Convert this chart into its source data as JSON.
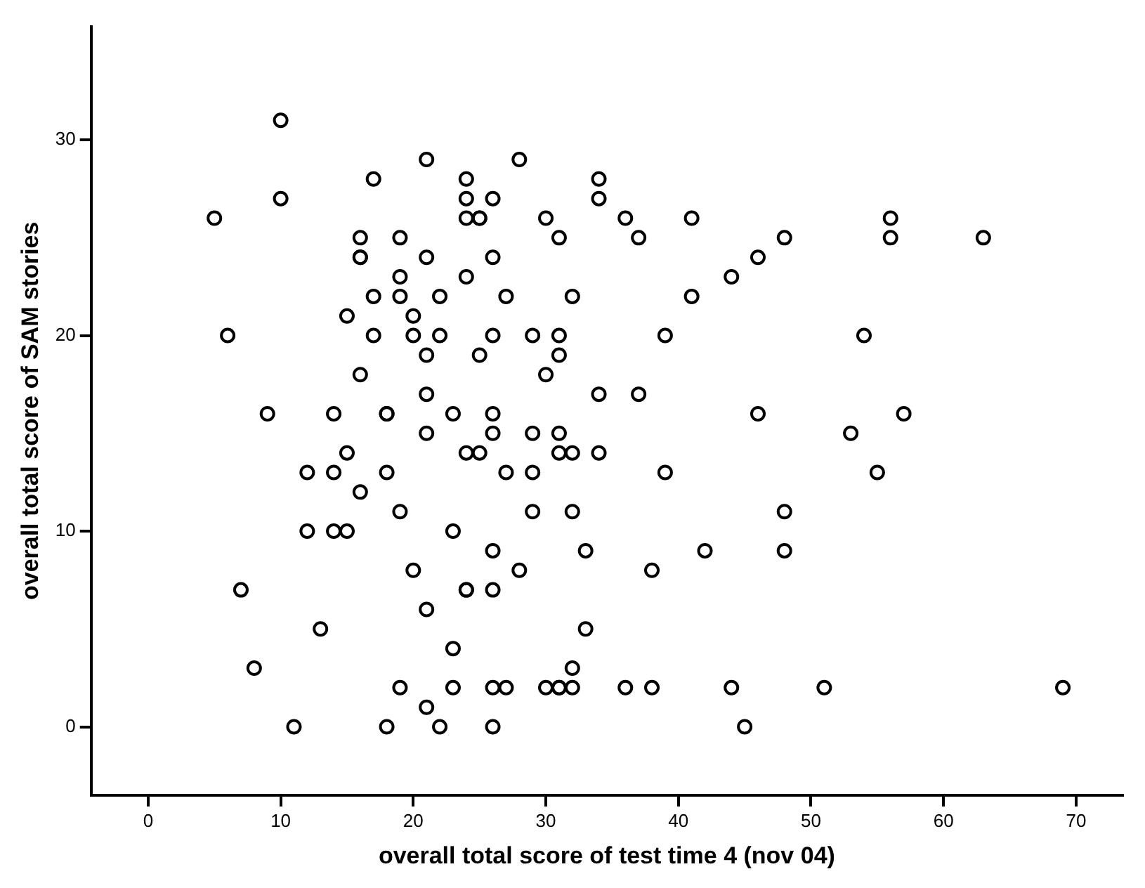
{
  "chart_data": {
    "type": "scatter",
    "xlabel": "overall total score of test time 4 (nov 04)",
    "ylabel": "overall total score of SAM stories",
    "xlim": [
      -4.3,
      73.5
    ],
    "ylim": [
      -3.5,
      35.8
    ],
    "xticks": [
      0,
      10,
      20,
      30,
      40,
      50,
      60,
      70
    ],
    "yticks": [
      0,
      10,
      20,
      30
    ],
    "grid": false,
    "legend": false,
    "marker": "circle",
    "series": [
      {
        "color": "#000000",
        "x": [
          10,
          21,
          28,
          17,
          24,
          34,
          10,
          24,
          26,
          34,
          5,
          24,
          25,
          25,
          30,
          36,
          41,
          56,
          16,
          19,
          31,
          37,
          48,
          56,
          63,
          16,
          16,
          21,
          26,
          46,
          19,
          24,
          44,
          17,
          19,
          22,
          27,
          32,
          41,
          15,
          20,
          6,
          17,
          20,
          22,
          26,
          29,
          31,
          39,
          54,
          21,
          25,
          31,
          16,
          30,
          21,
          34,
          37,
          9,
          14,
          18,
          18,
          23,
          26,
          46,
          57,
          21,
          26,
          29,
          31,
          53,
          15,
          24,
          25,
          31,
          32,
          34,
          12,
          14,
          18,
          27,
          29,
          39,
          55,
          16,
          19,
          29,
          32,
          48,
          12,
          14,
          15,
          23,
          26,
          33,
          42,
          48,
          20,
          28,
          38,
          7,
          24,
          24,
          26,
          21,
          13,
          33,
          23,
          8,
          32,
          19,
          23,
          26,
          27,
          30,
          31,
          31,
          32,
          36,
          38,
          44,
          51,
          69,
          21,
          11,
          18,
          22,
          26,
          45
        ],
        "values": [
          31,
          29,
          29,
          28,
          28,
          28,
          27,
          27,
          27,
          27,
          26,
          26,
          26,
          26,
          26,
          26,
          26,
          26,
          25,
          25,
          25,
          25,
          25,
          25,
          25,
          24,
          24,
          24,
          24,
          24,
          23,
          23,
          23,
          22,
          22,
          22,
          22,
          22,
          22,
          21,
          21,
          20,
          20,
          20,
          20,
          20,
          20,
          20,
          20,
          20,
          19,
          19,
          19,
          18,
          18,
          17,
          17,
          17,
          16,
          16,
          16,
          16,
          16,
          16,
          16,
          16,
          15,
          15,
          15,
          15,
          15,
          14,
          14,
          14,
          14,
          14,
          14,
          13,
          13,
          13,
          13,
          13,
          13,
          13,
          12,
          11,
          11,
          11,
          11,
          10,
          10,
          10,
          10,
          9,
          9,
          9,
          9,
          8,
          8,
          8,
          7,
          7,
          7,
          7,
          6,
          5,
          5,
          4,
          3,
          3,
          2,
          2,
          2,
          2,
          2,
          2,
          2,
          2,
          2,
          2,
          2,
          2,
          2,
          1,
          0,
          0,
          0,
          0,
          0
        ]
      }
    ]
  }
}
